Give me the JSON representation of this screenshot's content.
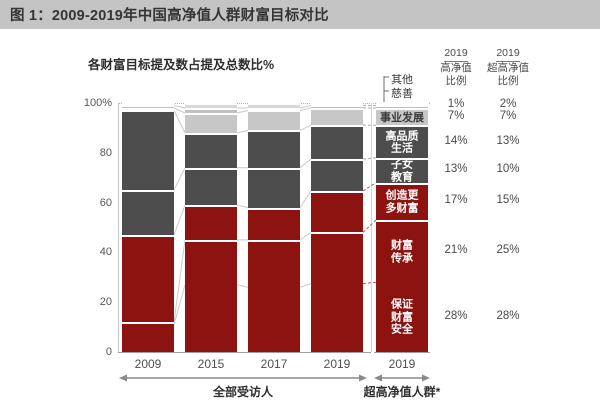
{
  "header": {
    "title": "图 1：2009-2019年中国高净值人群财富目标对比"
  },
  "chart_data": {
    "type": "bar",
    "variant": "stacked-percent",
    "title": "各财富目标提及数占提及总数比%",
    "ylim": [
      0,
      100
    ],
    "grid": "dotted-top-only",
    "yticks": [
      {
        "label": "100%",
        "value": 100
      },
      {
        "label": "80",
        "value": 80
      },
      {
        "label": "60",
        "value": 60
      },
      {
        "label": "40",
        "value": 40
      },
      {
        "label": "20",
        "value": 20
      },
      {
        "label": "0",
        "value": 0
      }
    ],
    "categories": [
      "2009",
      "2015",
      "2017",
      "2019",
      "2019"
    ],
    "groups": [
      {
        "label": "全部受访人",
        "bars": [
          0,
          1,
          2,
          3
        ]
      },
      {
        "label": "超高净值人群*",
        "bars": [
          4
        ]
      }
    ],
    "segments": [
      {
        "name": "保证财富安全",
        "color": "#8c1310",
        "text_color": "#ffffff",
        "bar_label": "保证\n财富\n安全",
        "values": [
          11,
          27,
          26,
          28,
          28
        ]
      },
      {
        "name": "财富传承",
        "color": "#8c1310",
        "text_color": "#ffffff",
        "bar_label": "财富\n传承",
        "values": [
          1,
          18,
          19,
          21,
          25
        ]
      },
      {
        "name": "创造更多财富",
        "color": "#8c1310",
        "text_color": "#ffffff",
        "bar_label": "创造更\n多财富",
        "values": [
          35,
          14,
          13,
          17,
          15
        ]
      },
      {
        "name": "子女教育",
        "color": "#4d4d4d",
        "text_color": "#ffffff",
        "bar_label": "子女\n教育",
        "values": [
          18,
          15,
          16,
          13,
          10
        ]
      },
      {
        "name": "高品质生活",
        "color": "#4d4d4d",
        "text_color": "#ffffff",
        "bar_label": "高品质\n生活",
        "values": [
          32,
          14,
          15,
          14,
          13
        ]
      },
      {
        "name": "事业发展",
        "color": "#c7c7c7",
        "text_color": "#3a3a3a",
        "bar_label": "事业发展",
        "values": [
          1,
          8,
          8,
          7,
          7
        ]
      },
      {
        "name": "慈善",
        "color": "#c0c0c0",
        "text_color": "#3a3a3a",
        "bar_label": null,
        "values": [
          1,
          2,
          1,
          1,
          1
        ]
      },
      {
        "name": "其他",
        "color": "#d8d8d8",
        "text_color": "#3a3a3a",
        "bar_label": null,
        "values": [
          1,
          2,
          2,
          1,
          1
        ]
      }
    ],
    "annotations": [
      {
        "label": "其他"
      },
      {
        "label": "慈善"
      }
    ]
  },
  "right_table": {
    "col1_header": {
      "year": "2019",
      "line2": "高净值",
      "line3": "比例"
    },
    "col2_header": {
      "year": "2019",
      "line2": "超高净值",
      "line3": "比例"
    },
    "rows": [
      {
        "segment": "其他/慈善",
        "hnw": "1%",
        "uhnw": "2%"
      },
      {
        "segment": "事业发展",
        "hnw": "7%",
        "uhnw": "7%"
      },
      {
        "segment": "高品质生活",
        "hnw": "14%",
        "uhnw": "13%"
      },
      {
        "segment": "子女教育",
        "hnw": "13%",
        "uhnw": "10%"
      },
      {
        "segment": "创造更多财富",
        "hnw": "17%",
        "uhnw": "15%"
      },
      {
        "segment": "财富传承",
        "hnw": "21%",
        "uhnw": "25%"
      },
      {
        "segment": "保证财富安全",
        "hnw": "28%",
        "uhnw": "28%"
      }
    ]
  }
}
